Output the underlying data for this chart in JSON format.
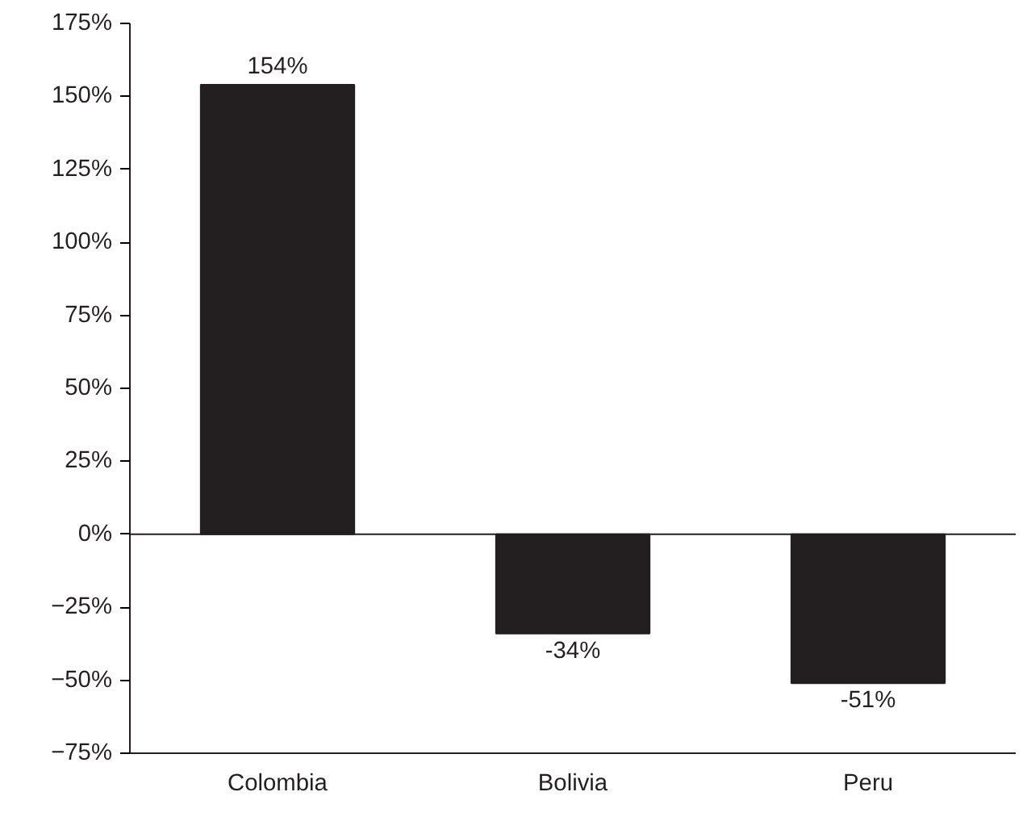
{
  "chart_data": {
    "type": "bar",
    "categories": [
      "Colombia",
      "Bolivia",
      "Peru"
    ],
    "values": [
      154,
      -34,
      -51
    ],
    "value_labels": [
      "154%",
      "-34%",
      "-51%"
    ],
    "color": "#231f20",
    "ylim": [
      -75,
      175
    ],
    "yticks": [
      {
        "value": -75,
        "label": "−75%"
      },
      {
        "value": -50,
        "label": "−50%"
      },
      {
        "value": -25,
        "label": "−25%"
      },
      {
        "value": 0,
        "label": "0%"
      },
      {
        "value": 25,
        "label": "25%"
      },
      {
        "value": 50,
        "label": "50%"
      },
      {
        "value": 75,
        "label": "75%"
      },
      {
        "value": 100,
        "label": "100%"
      },
      {
        "value": 125,
        "label": "125%"
      },
      {
        "value": 150,
        "label": "150%"
      },
      {
        "value": 175,
        "label": "175%"
      }
    ],
    "ref_lines": [
      {
        "axis": "y",
        "value": 0
      }
    ]
  }
}
